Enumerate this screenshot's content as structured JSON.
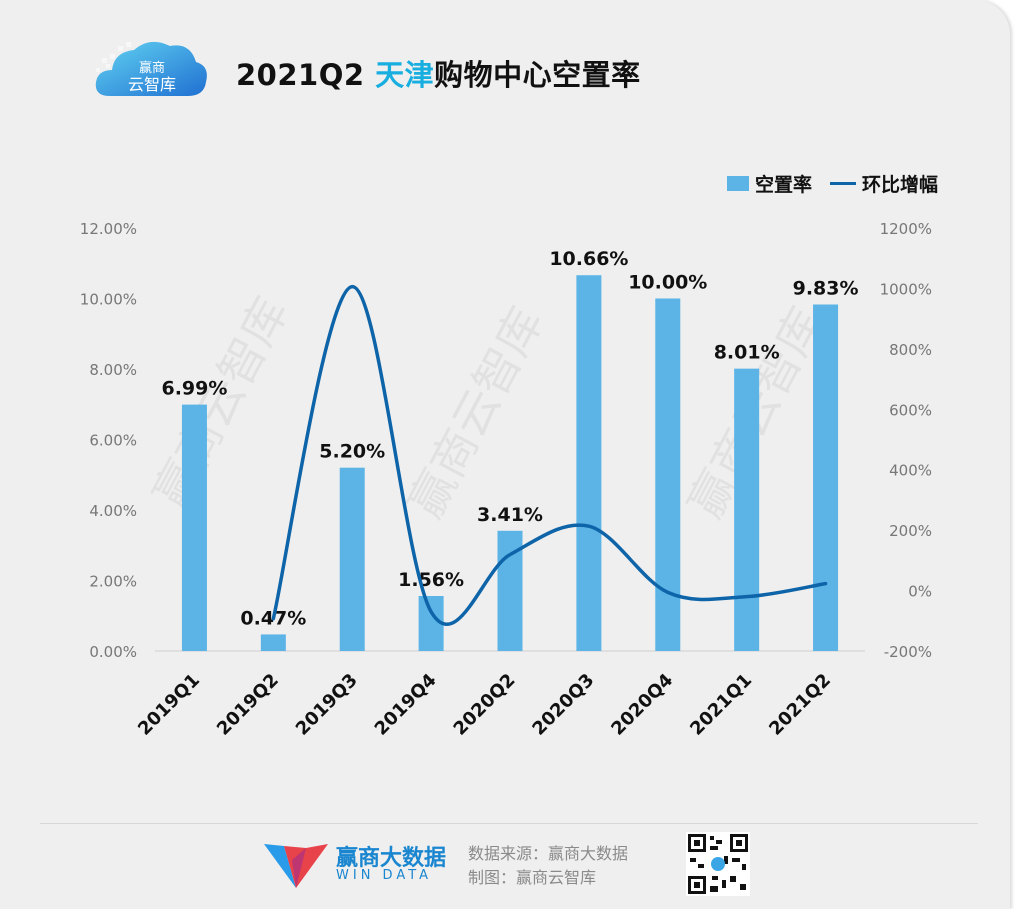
{
  "header": {
    "title_prefix": "2021Q2",
    "title_highlight": "天津",
    "title_suffix": "购物中心空置率",
    "logo_text_1": "赢商",
    "logo_text_2": "云智库"
  },
  "footer": {
    "brand_cn": "赢商大数据",
    "brand_en": "WIN DATA",
    "source_line": "数据来源：赢商大数据",
    "made_by_line": "制图：赢商云智库"
  },
  "watermark": "赢商云智库",
  "colors": {
    "bar": "#5bb3e6",
    "line": "#0e64a8",
    "title_highlight": "#19aee0",
    "brand": "#1a86d0"
  },
  "chart_data": {
    "type": "bar",
    "title": "2021Q2 天津购物中心空置率",
    "categories": [
      "2019Q1",
      "2019Q2",
      "2019Q3",
      "2019Q4",
      "2020Q2",
      "2020Q3",
      "2020Q4",
      "2021Q1",
      "2021Q2"
    ],
    "series": [
      {
        "name": "空置率",
        "type": "bar",
        "axis": "left",
        "values": [
          6.99,
          0.47,
          5.2,
          1.56,
          3.41,
          10.66,
          10.0,
          8.01,
          9.83
        ],
        "labels": [
          "6.99%",
          "0.47%",
          "5.20%",
          "1.56%",
          "3.41%",
          "10.66%",
          "10.00%",
          "8.01%",
          "9.83%"
        ]
      },
      {
        "name": "环比增幅",
        "type": "line",
        "axis": "right",
        "values": [
          null,
          -93,
          1006,
          -70,
          119,
          213,
          -6,
          -20,
          23
        ]
      }
    ],
    "y_left": {
      "range": [
        0,
        12
      ],
      "ticks": [
        0,
        2,
        4,
        6,
        8,
        10,
        12
      ],
      "tick_labels": [
        "0.00%",
        "2.00%",
        "4.00%",
        "6.00%",
        "8.00%",
        "10.00%",
        "12.00%"
      ]
    },
    "y_right": {
      "range": [
        -200,
        1200
      ],
      "ticks": [
        -200,
        0,
        200,
        400,
        600,
        800,
        1000,
        1200
      ],
      "tick_labels": [
        "-200%",
        "0%",
        "200%",
        "400%",
        "600%",
        "800%",
        "1000%",
        "1200%"
      ]
    },
    "legend": {
      "position": "top-right"
    },
    "grid": false
  }
}
